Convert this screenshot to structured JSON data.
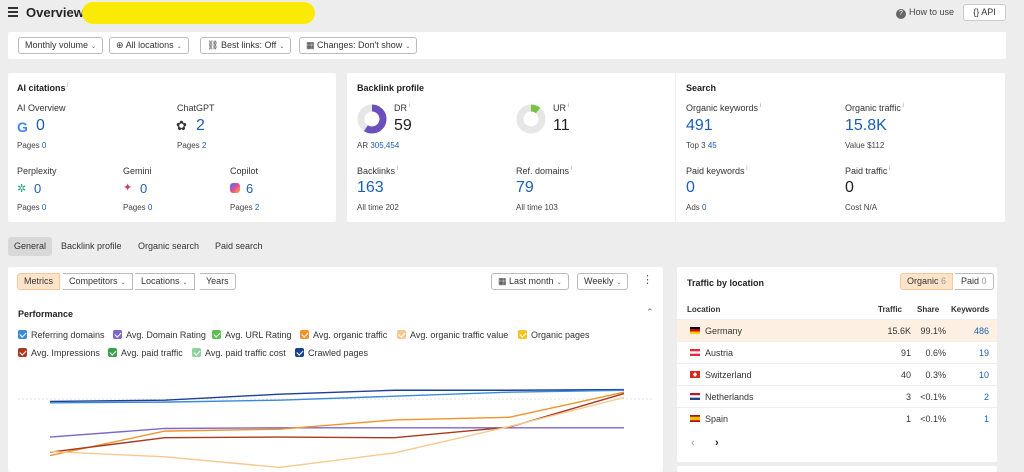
{
  "header": {
    "title": "Overview",
    "how_to_use": "How to use",
    "api": "API"
  },
  "filters": {
    "volume": "Monthly volume",
    "locations": "All locations",
    "best_links": "Best links: Off",
    "changes": "Changes: Don't show"
  },
  "ai_citations": {
    "title": "AI citations",
    "ai_overview": {
      "label": "AI Overview",
      "value": "0",
      "pages_label": "Pages",
      "pages": "0"
    },
    "chatgpt": {
      "label": "ChatGPT",
      "value": "2",
      "pages_label": "Pages",
      "pages": "2"
    },
    "perplexity": {
      "label": "Perplexity",
      "value": "0",
      "pages_label": "Pages",
      "pages": "0"
    },
    "gemini": {
      "label": "Gemini",
      "value": "0",
      "pages_label": "Pages",
      "pages": "0"
    },
    "copilot": {
      "label": "Copilot",
      "value": "6",
      "pages_label": "Pages",
      "pages": "2"
    }
  },
  "backlink_profile": {
    "title": "Backlink profile",
    "dr": {
      "label": "DR",
      "value": "59",
      "gauge_fraction": 0.59,
      "color": "#6b4fbb"
    },
    "ar": {
      "label": "AR",
      "value": "305,454"
    },
    "ur": {
      "label": "UR",
      "value": "11",
      "gauge_fraction": 0.11,
      "color": "#7cc242"
    },
    "backlinks": {
      "label": "Backlinks",
      "value": "163",
      "sub_label": "All time",
      "sub_value": "202"
    },
    "ref_domains": {
      "label": "Ref. domains",
      "value": "79",
      "sub_label": "All time",
      "sub_value": "103"
    }
  },
  "search": {
    "title": "Search",
    "organic_keywords": {
      "label": "Organic keywords",
      "value": "491",
      "sub_label": "Top 3",
      "sub_value": "45"
    },
    "organic_traffic": {
      "label": "Organic traffic",
      "value": "15.8K",
      "sub_label": "Value",
      "sub_value": "$112"
    },
    "paid_keywords": {
      "label": "Paid keywords",
      "value": "0",
      "sub_label": "Ads",
      "sub_value": "0"
    },
    "paid_traffic": {
      "label": "Paid traffic",
      "value": "0",
      "sub_label": "Cost",
      "sub_value": "N/A"
    }
  },
  "tabs": [
    "General",
    "Backlink profile",
    "Organic search",
    "Paid search"
  ],
  "chart_toolbar": {
    "segments": [
      "Metrics",
      "Competitors",
      "Locations",
      "Years"
    ],
    "period": "Last month",
    "granularity": "Weekly"
  },
  "performance": {
    "title": "Performance",
    "legend": [
      {
        "name": "Referring domains",
        "color": "#3b8ad9"
      },
      {
        "name": "Avg. Domain Rating",
        "color": "#7b68c8"
      },
      {
        "name": "Avg. URL Rating",
        "color": "#5bbf4f"
      },
      {
        "name": "Avg. organic traffic",
        "color": "#f0932b"
      },
      {
        "name": "Avg. organic traffic value",
        "color": "#f9c88f"
      },
      {
        "name": "Organic pages",
        "color": "#f2c417"
      },
      {
        "name": "Avg. Impressions",
        "color": "#a83a1e"
      },
      {
        "name": "Avg. paid traffic",
        "color": "#3aa04a"
      },
      {
        "name": "Avg. paid traffic cost",
        "color": "#8fd19e"
      },
      {
        "name": "Crawled pages",
        "color": "#1c3f94"
      }
    ]
  },
  "chart_data": {
    "type": "line",
    "x": [
      1,
      2,
      3,
      4,
      5,
      6
    ],
    "series": [
      {
        "name": "Crawled pages",
        "color": "#1c3f94",
        "values": [
          0.82,
          0.84,
          0.93,
          0.99,
          0.99,
          1.0
        ]
      },
      {
        "name": "Referring domains",
        "color": "#3b8ad9",
        "values": [
          0.8,
          0.81,
          0.84,
          0.9,
          0.96,
          0.99
        ]
      },
      {
        "name": "Avg. Domain Rating",
        "color": "#7b68c8",
        "values": [
          0.28,
          0.41,
          0.42,
          0.42,
          0.42,
          0.42
        ]
      },
      {
        "name": "Avg. organic traffic",
        "color": "#f0932b",
        "values": [
          0.0,
          0.37,
          0.4,
          0.54,
          0.58,
          0.96
        ]
      },
      {
        "name": "Avg. Impressions",
        "color": "#a83a1e",
        "values": [
          0.05,
          0.27,
          0.28,
          0.27,
          0.43,
          0.94
        ]
      },
      {
        "name": "Avg. organic traffic value",
        "color": "#f9c88f",
        "values": [
          0.06,
          -0.02,
          -0.18,
          0.04,
          0.44,
          0.88
        ]
      }
    ],
    "ylim": [
      -0.25,
      1.1
    ]
  },
  "traffic_by_location": {
    "title": "Traffic by location",
    "toggle": [
      {
        "label": "Organic",
        "count": "6"
      },
      {
        "label": "Paid",
        "count": "0"
      }
    ],
    "columns": [
      "Location",
      "Traffic",
      "Share",
      "Keywords"
    ],
    "rows": [
      {
        "country": "Germany",
        "traffic": "15.6K",
        "share": "99.1%",
        "keywords": "486"
      },
      {
        "country": "Austria",
        "traffic": "91",
        "share": "0.6%",
        "keywords": "19"
      },
      {
        "country": "Switzerland",
        "traffic": "40",
        "share": "0.3%",
        "keywords": "10"
      },
      {
        "country": "Netherlands",
        "traffic": "3",
        "share": "<0.1%",
        "keywords": "2"
      },
      {
        "country": "Spain",
        "traffic": "1",
        "share": "<0.1%",
        "keywords": "1"
      }
    ]
  }
}
